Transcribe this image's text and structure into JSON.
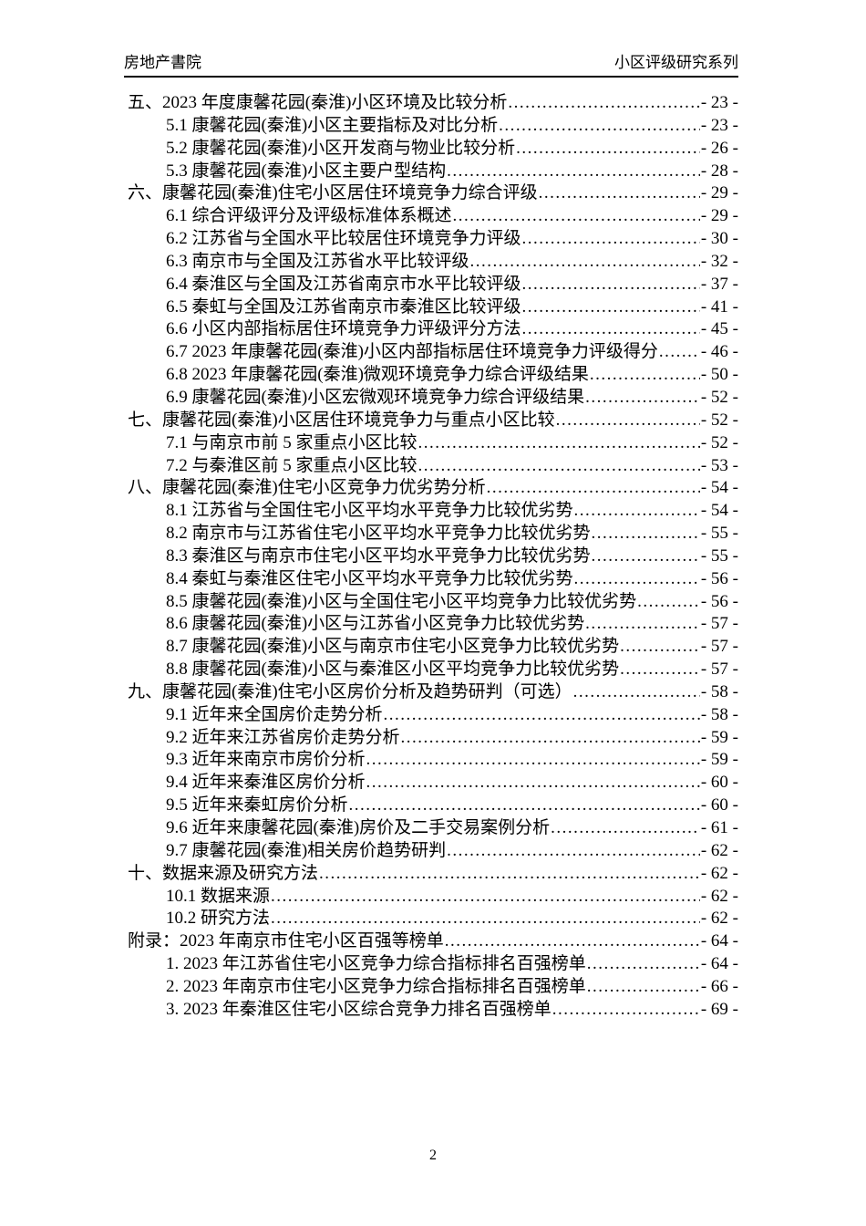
{
  "header": {
    "left": "房地产書院",
    "right": "小区评级研究系列"
  },
  "toc": {
    "entries": [
      {
        "level": 1,
        "text": "五、2023 年度康馨花园(秦淮)小区环境及比较分析",
        "page": "- 23 -"
      },
      {
        "level": 2,
        "text": "5.1 康馨花园(秦淮)小区主要指标及对比分析",
        "page": "- 23 -"
      },
      {
        "level": 2,
        "text": "5.2 康馨花园(秦淮)小区开发商与物业比较分析",
        "page": "- 26 -"
      },
      {
        "level": 2,
        "text": "5.3 康馨花园(秦淮)小区主要户型结构",
        "page": "- 28 -"
      },
      {
        "level": 1,
        "text": "六、康馨花园(秦淮)住宅小区居住环境竞争力综合评级",
        "page": "- 29 -"
      },
      {
        "level": 2,
        "text": "6.1 综合评级评分及评级标准体系概述",
        "page": "- 29 -"
      },
      {
        "level": 2,
        "text": "6.2 江苏省与全国水平比较居住环境竞争力评级",
        "page": "- 30 -"
      },
      {
        "level": 2,
        "text": "6.3 南京市与全国及江苏省水平比较评级",
        "page": "- 32 -"
      },
      {
        "level": 2,
        "text": "6.4 秦淮区与全国及江苏省南京市水平比较评级",
        "page": "- 37 -"
      },
      {
        "level": 2,
        "text": "6.5 秦虹与全国及江苏省南京市秦淮区比较评级",
        "page": "- 41 -"
      },
      {
        "level": 2,
        "text": "6.6 小区内部指标居住环境竞争力评级评分方法",
        "page": "- 45 -"
      },
      {
        "level": 2,
        "text": "6.7 2023 年康馨花园(秦淮)小区内部指标居住环境竞争力评级得分",
        "page": "- 46 -"
      },
      {
        "level": 2,
        "text": "6.8 2023 年康馨花园(秦淮)微观环境竞争力综合评级结果",
        "page": "- 50 -"
      },
      {
        "level": 2,
        "text": "6.9 康馨花园(秦淮)小区宏微观环境竞争力综合评级结果",
        "page": "- 52 -"
      },
      {
        "level": 1,
        "text": "七、康馨花园(秦淮)小区居住环境竞争力与重点小区比较",
        "page": "- 52 -"
      },
      {
        "level": 2,
        "text": "7.1 与南京市前 5 家重点小区比较",
        "page": "- 52 -"
      },
      {
        "level": 2,
        "text": "7.2 与秦淮区前 5 家重点小区比较",
        "page": "- 53 -"
      },
      {
        "level": 1,
        "text": "八、康馨花园(秦淮)住宅小区竞争力优劣势分析",
        "page": "- 54 -"
      },
      {
        "level": 2,
        "text": "8.1 江苏省与全国住宅小区平均水平竞争力比较优劣势",
        "page": "- 54 -"
      },
      {
        "level": 2,
        "text": "8.2 南京市与江苏省住宅小区平均水平竞争力比较优劣势",
        "page": "- 55 -"
      },
      {
        "level": 2,
        "text": "8.3 秦淮区与南京市住宅小区平均水平竞争力比较优劣势",
        "page": "- 55 -"
      },
      {
        "level": 2,
        "text": "8.4 秦虹与秦淮区住宅小区平均水平竞争力比较优劣势",
        "page": "- 56 -"
      },
      {
        "level": 2,
        "text": "8.5 康馨花园(秦淮)小区与全国住宅小区平均竞争力比较优劣势",
        "page": "- 56 -"
      },
      {
        "level": 2,
        "text": "8.6 康馨花园(秦淮)小区与江苏省小区竞争力比较优劣势",
        "page": "- 57 -"
      },
      {
        "level": 2,
        "text": "8.7 康馨花园(秦淮)小区与南京市住宅小区竞争力比较优劣势",
        "page": "- 57 -"
      },
      {
        "level": 2,
        "text": "8.8 康馨花园(秦淮)小区与秦淮区小区平均竞争力比较优劣势",
        "page": "- 57 -"
      },
      {
        "level": 1,
        "text": "九、康馨花园(秦淮)住宅小区房价分析及趋势研判（可选）",
        "page": "- 58 -"
      },
      {
        "level": 2,
        "text": "9.1 近年来全国房价走势分析",
        "page": "- 58 -"
      },
      {
        "level": 2,
        "text": "9.2 近年来江苏省房价走势分析",
        "page": "- 59 -"
      },
      {
        "level": 2,
        "text": "9.3 近年来南京市房价分析",
        "page": "- 59 -"
      },
      {
        "level": 2,
        "text": "9.4 近年来秦淮区房价分析",
        "page": "- 60 -"
      },
      {
        "level": 2,
        "text": "9.5 近年来秦虹房价分析",
        "page": "- 60 -"
      },
      {
        "level": 2,
        "text": "9.6 近年来康馨花园(秦淮)房价及二手交易案例分析",
        "page": "- 61 -"
      },
      {
        "level": 2,
        "text": "9.7 康馨花园(秦淮)相关房价趋势研判",
        "page": "- 62 -"
      },
      {
        "level": 1,
        "text": "十、数据来源及研究方法",
        "page": "- 62 -"
      },
      {
        "level": 2,
        "text": "10.1 数据来源",
        "page": "- 62 -"
      },
      {
        "level": 2,
        "text": "10.2 研究方法",
        "page": "- 62 -"
      },
      {
        "level": 1,
        "text": "附录：2023 年南京市住宅小区百强等榜单",
        "page": "- 64 -"
      },
      {
        "level": 2,
        "text": "1.  2023 年江苏省住宅小区竞争力综合指标排名百强榜单",
        "page": "- 64 -"
      },
      {
        "level": 2,
        "text": "2.  2023 年南京市住宅小区竞争力综合指标排名百强榜单",
        "page": "- 66 -"
      },
      {
        "level": 2,
        "text": "3.  2023 年秦淮区住宅小区综合竞争力排名百强榜单",
        "page": "- 69 -"
      }
    ]
  },
  "footer": {
    "page_number": "2"
  }
}
